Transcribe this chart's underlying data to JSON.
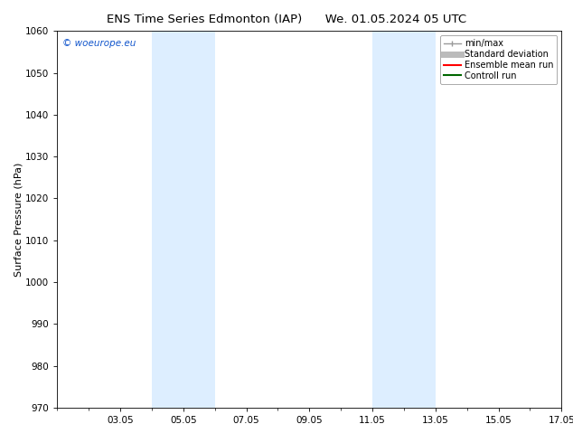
{
  "title_left": "ENS Time Series Edmonton (IAP)",
  "title_right": "We. 01.05.2024 05 UTC",
  "ylabel": "Surface Pressure (hPa)",
  "ylim": [
    970,
    1060
  ],
  "yticks": [
    970,
    980,
    990,
    1000,
    1010,
    1020,
    1030,
    1040,
    1050,
    1060
  ],
  "xlim": [
    1.0,
    17.0
  ],
  "xtick_labels": [
    "03.05",
    "05.05",
    "07.05",
    "09.05",
    "11.05",
    "13.05",
    "15.05",
    "17.05"
  ],
  "xtick_positions": [
    3.0,
    5.0,
    7.0,
    9.0,
    11.0,
    13.0,
    15.0,
    17.0
  ],
  "background_color": "#ffffff",
  "plot_bg_color": "#ffffff",
  "shaded_bands": [
    {
      "xmin": 4.0,
      "xmax": 6.0,
      "color": "#ddeeff"
    },
    {
      "xmin": 11.0,
      "xmax": 13.0,
      "color": "#ddeeff"
    }
  ],
  "watermark_text": "© woeurope.eu",
  "watermark_color": "#1155cc",
  "legend_entries": [
    {
      "label": "min/max",
      "color": "#999999",
      "lw": 1.0,
      "ls": "-"
    },
    {
      "label": "Standard deviation",
      "color": "#bbbbbb",
      "lw": 5,
      "ls": "-"
    },
    {
      "label": "Ensemble mean run",
      "color": "#ff0000",
      "lw": 1.5,
      "ls": "-"
    },
    {
      "label": "Controll run",
      "color": "#006600",
      "lw": 1.5,
      "ls": "-"
    }
  ],
  "title_fontsize": 9.5,
  "axis_label_fontsize": 8,
  "tick_fontsize": 7.5,
  "legend_fontsize": 7,
  "watermark_fontsize": 7.5
}
